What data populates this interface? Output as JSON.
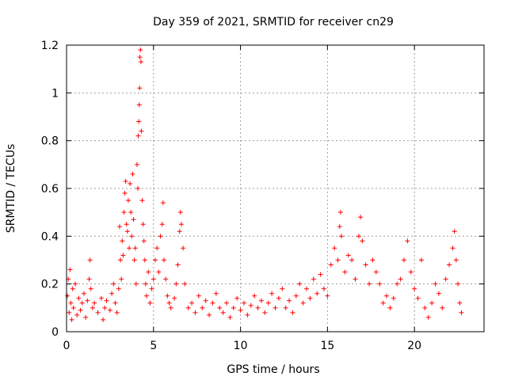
{
  "chart_data": {
    "type": "scatter",
    "title": "Day 359 of 2021, SRMTID for receiver cn29",
    "xlabel": "GPS time / hours",
    "ylabel": "SRMTID / TECUs",
    "xlim": [
      0,
      24
    ],
    "ylim": [
      0,
      1.2
    ],
    "xticks": [
      0,
      5,
      10,
      15,
      20
    ],
    "xtick_labels": [
      "0",
      "5",
      "10",
      "15",
      "20"
    ],
    "yticks": [
      0,
      0.2,
      0.4,
      0.6,
      0.8,
      1,
      1.2
    ],
    "ytick_labels": [
      "0",
      "0.2",
      "0.4",
      "0.6",
      "0.8",
      "1",
      "1.2"
    ],
    "grid": true,
    "marker": "+",
    "color": "#ff0000",
    "series": [
      {
        "name": "cn29",
        "points": [
          [
            0.05,
            0.15
          ],
          [
            0.1,
            0.22
          ],
          [
            0.15,
            0.08
          ],
          [
            0.2,
            0.26
          ],
          [
            0.25,
            0.12
          ],
          [
            0.3,
            0.05
          ],
          [
            0.35,
            0.18
          ],
          [
            0.4,
            0.1
          ],
          [
            0.5,
            0.2
          ],
          [
            0.6,
            0.07
          ],
          [
            0.7,
            0.14
          ],
          [
            0.8,
            0.09
          ],
          [
            0.9,
            0.12
          ],
          [
            1.0,
            0.16
          ],
          [
            1.1,
            0.06
          ],
          [
            1.2,
            0.13
          ],
          [
            1.3,
            0.22
          ],
          [
            1.35,
            0.3
          ],
          [
            1.4,
            0.18
          ],
          [
            1.5,
            0.1
          ],
          [
            1.6,
            0.12
          ],
          [
            1.8,
            0.08
          ],
          [
            2.0,
            0.14
          ],
          [
            2.1,
            0.05
          ],
          [
            2.2,
            0.1
          ],
          [
            2.3,
            0.13
          ],
          [
            2.5,
            0.09
          ],
          [
            2.6,
            0.16
          ],
          [
            2.7,
            0.2
          ],
          [
            2.8,
            0.12
          ],
          [
            2.9,
            0.08
          ],
          [
            3.0,
            0.18
          ],
          [
            3.05,
            0.44
          ],
          [
            3.1,
            0.3
          ],
          [
            3.15,
            0.22
          ],
          [
            3.2,
            0.38
          ],
          [
            3.25,
            0.32
          ],
          [
            3.3,
            0.5
          ],
          [
            3.35,
            0.58
          ],
          [
            3.4,
            0.63
          ],
          [
            3.45,
            0.45
          ],
          [
            3.5,
            0.42
          ],
          [
            3.55,
            0.55
          ],
          [
            3.6,
            0.35
          ],
          [
            3.65,
            0.62
          ],
          [
            3.7,
            0.5
          ],
          [
            3.75,
            0.4
          ],
          [
            3.8,
            0.66
          ],
          [
            3.85,
            0.47
          ],
          [
            3.9,
            0.3
          ],
          [
            3.95,
            0.35
          ],
          [
            4.0,
            0.2
          ],
          [
            4.05,
            0.7
          ],
          [
            4.1,
            0.6
          ],
          [
            4.12,
            0.82
          ],
          [
            4.15,
            0.88
          ],
          [
            4.18,
            0.95
          ],
          [
            4.2,
            1.02
          ],
          [
            4.22,
            1.15
          ],
          [
            4.25,
            1.18
          ],
          [
            4.28,
            1.13
          ],
          [
            4.3,
            0.84
          ],
          [
            4.35,
            0.55
          ],
          [
            4.4,
            0.45
          ],
          [
            4.45,
            0.38
          ],
          [
            4.5,
            0.3
          ],
          [
            4.55,
            0.2
          ],
          [
            4.6,
            0.15
          ],
          [
            4.7,
            0.25
          ],
          [
            4.8,
            0.12
          ],
          [
            4.9,
            0.18
          ],
          [
            5.0,
            0.22
          ],
          [
            5.1,
            0.3
          ],
          [
            5.2,
            0.35
          ],
          [
            5.3,
            0.25
          ],
          [
            5.4,
            0.4
          ],
          [
            5.5,
            0.45
          ],
          [
            5.55,
            0.54
          ],
          [
            5.6,
            0.3
          ],
          [
            5.7,
            0.22
          ],
          [
            5.8,
            0.15
          ],
          [
            5.9,
            0.12
          ],
          [
            6.0,
            0.1
          ],
          [
            6.2,
            0.14
          ],
          [
            6.3,
            0.2
          ],
          [
            6.4,
            0.28
          ],
          [
            6.5,
            0.42
          ],
          [
            6.55,
            0.5
          ],
          [
            6.6,
            0.45
          ],
          [
            6.7,
            0.35
          ],
          [
            6.8,
            0.2
          ],
          [
            7.0,
            0.1
          ],
          [
            7.2,
            0.12
          ],
          [
            7.4,
            0.08
          ],
          [
            7.6,
            0.15
          ],
          [
            7.8,
            0.1
          ],
          [
            8.0,
            0.13
          ],
          [
            8.2,
            0.07
          ],
          [
            8.4,
            0.12
          ],
          [
            8.6,
            0.16
          ],
          [
            8.8,
            0.1
          ],
          [
            9.0,
            0.08
          ],
          [
            9.2,
            0.12
          ],
          [
            9.4,
            0.06
          ],
          [
            9.6,
            0.1
          ],
          [
            9.8,
            0.14
          ],
          [
            10.0,
            0.09
          ],
          [
            10.2,
            0.12
          ],
          [
            10.4,
            0.07
          ],
          [
            10.6,
            0.11
          ],
          [
            10.8,
            0.15
          ],
          [
            11.0,
            0.1
          ],
          [
            11.2,
            0.13
          ],
          [
            11.4,
            0.08
          ],
          [
            11.6,
            0.12
          ],
          [
            11.8,
            0.16
          ],
          [
            12.0,
            0.1
          ],
          [
            12.2,
            0.14
          ],
          [
            12.4,
            0.18
          ],
          [
            12.6,
            0.1
          ],
          [
            12.8,
            0.13
          ],
          [
            13.0,
            0.08
          ],
          [
            13.2,
            0.15
          ],
          [
            13.4,
            0.2
          ],
          [
            13.6,
            0.12
          ],
          [
            13.8,
            0.18
          ],
          [
            14.0,
            0.14
          ],
          [
            14.2,
            0.22
          ],
          [
            14.4,
            0.16
          ],
          [
            14.6,
            0.24
          ],
          [
            14.8,
            0.18
          ],
          [
            15.0,
            0.15
          ],
          [
            15.2,
            0.28
          ],
          [
            15.4,
            0.35
          ],
          [
            15.6,
            0.3
          ],
          [
            15.7,
            0.44
          ],
          [
            15.75,
            0.5
          ],
          [
            15.8,
            0.4
          ],
          [
            16.0,
            0.25
          ],
          [
            16.2,
            0.32
          ],
          [
            16.4,
            0.3
          ],
          [
            16.6,
            0.22
          ],
          [
            16.8,
            0.4
          ],
          [
            16.9,
            0.48
          ],
          [
            17.0,
            0.38
          ],
          [
            17.2,
            0.28
          ],
          [
            17.4,
            0.2
          ],
          [
            17.6,
            0.3
          ],
          [
            17.8,
            0.25
          ],
          [
            18.0,
            0.2
          ],
          [
            18.2,
            0.12
          ],
          [
            18.4,
            0.15
          ],
          [
            18.6,
            0.1
          ],
          [
            18.8,
            0.14
          ],
          [
            19.0,
            0.2
          ],
          [
            19.2,
            0.22
          ],
          [
            19.4,
            0.3
          ],
          [
            19.6,
            0.38
          ],
          [
            19.8,
            0.25
          ],
          [
            20.0,
            0.18
          ],
          [
            20.2,
            0.14
          ],
          [
            20.4,
            0.3
          ],
          [
            20.6,
            0.1
          ],
          [
            20.8,
            0.06
          ],
          [
            21.0,
            0.12
          ],
          [
            21.2,
            0.2
          ],
          [
            21.4,
            0.16
          ],
          [
            21.6,
            0.1
          ],
          [
            21.8,
            0.22
          ],
          [
            22.0,
            0.28
          ],
          [
            22.2,
            0.35
          ],
          [
            22.3,
            0.42
          ],
          [
            22.4,
            0.3
          ],
          [
            22.5,
            0.2
          ],
          [
            22.6,
            0.12
          ],
          [
            22.7,
            0.08
          ]
        ]
      }
    ]
  }
}
